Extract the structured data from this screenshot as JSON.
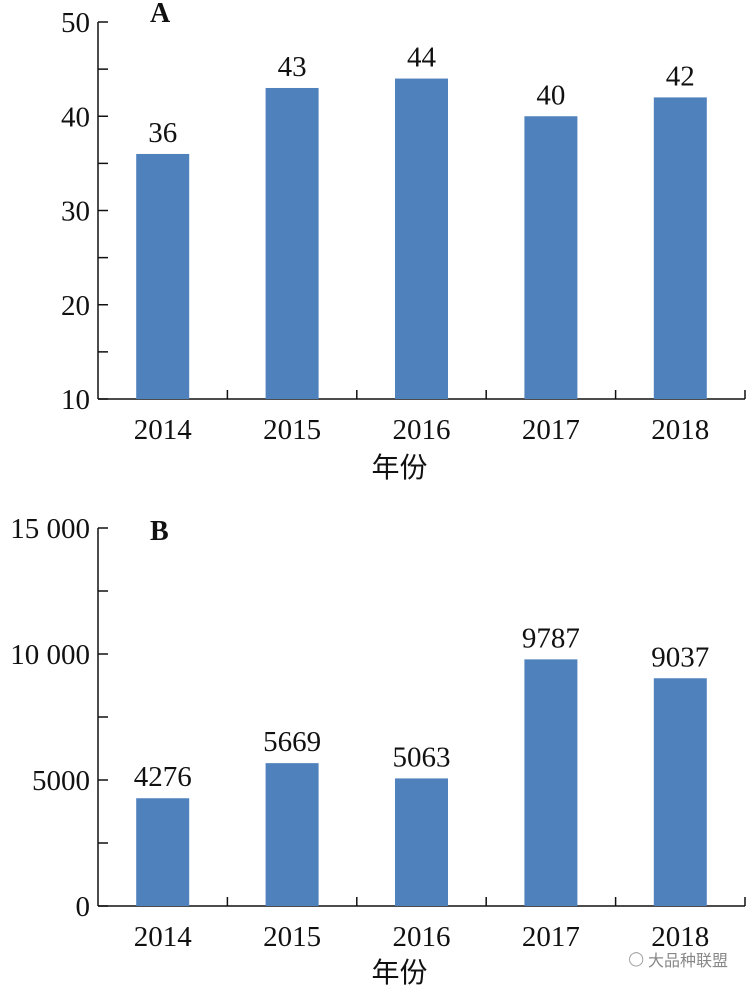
{
  "colors": {
    "bar": "#4f81bd"
  },
  "chart_data": [
    {
      "type": "bar",
      "panel_label": "A",
      "categories": [
        "2014",
        "2015",
        "2016",
        "2017",
        "2018"
      ],
      "values": [
        36,
        43,
        44,
        40,
        42
      ],
      "data_labels": [
        "36",
        "43",
        "44",
        "40",
        "42"
      ],
      "xlabel": "年份",
      "ylabel": "",
      "ylim": [
        10,
        50
      ],
      "yticks": [
        10,
        20,
        30,
        40,
        50
      ],
      "ytick_labels": [
        "10",
        "20",
        "30",
        "40",
        "50"
      ],
      "grid": false
    },
    {
      "type": "bar",
      "panel_label": "B",
      "categories": [
        "2014",
        "2015",
        "2016",
        "2017",
        "2018"
      ],
      "values": [
        4276,
        5669,
        5063,
        9787,
        9037
      ],
      "data_labels": [
        "4276",
        "5669",
        "5063",
        "9787",
        "9037"
      ],
      "xlabel": "年份",
      "ylabel": "",
      "ylim": [
        0,
        15000
      ],
      "yticks": [
        0,
        5000,
        10000,
        15000
      ],
      "ytick_labels": [
        "0",
        "5000",
        "10 000",
        "15 000"
      ],
      "grid": false
    }
  ],
  "watermark": {
    "icon": "wechat-icon",
    "text": "大品种联盟"
  }
}
